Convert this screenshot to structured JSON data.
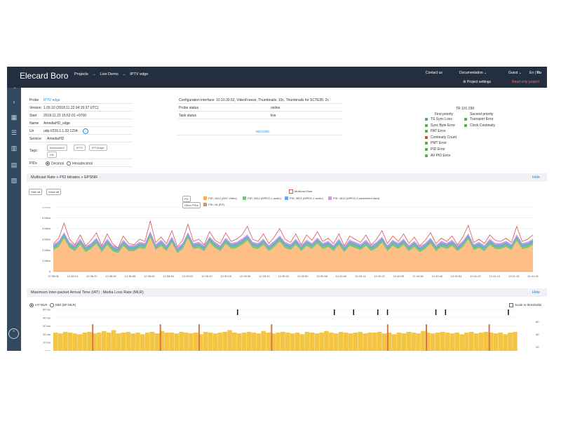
{
  "app": {
    "brand": "Elecard Boro"
  },
  "breadcrumb": {
    "items": [
      "Projects",
      "Live Demo",
      "IPTV edge"
    ],
    "sep": "→"
  },
  "topnav": {
    "contact": "Contact us",
    "documentation": "Documentation",
    "guest": "Guest",
    "lang_en": "En",
    "lang_sep": "|",
    "lang_ru": "Ru",
    "project_settings": "Project settings",
    "read_only": "Read only project"
  },
  "probe": {
    "probe_label": "Probe",
    "probe_value": "IPTV edge",
    "version_label": "Version",
    "version_value": "1.05.10 (2018.11.22 04:15:37 UTC)",
    "start_label": "Start",
    "start_value": "2018.11.22 15:52:01 +0700",
    "name_label": "Name",
    "name_value": "AmediaHD_edge",
    "uri_label": "Uri",
    "uri_value": "udp://239.1.1.32:1234",
    "service_label": "Service:",
    "service_value": "AmediaHD",
    "tags_label": "Tags:",
    "tags": [
      "transcoder2",
      "IPTV",
      "IPTVedge",
      "HD"
    ],
    "pids_label": "PIDs",
    "pids_options": [
      "Decimal",
      "Hexadecimal"
    ],
    "pids_selected": "Decimal"
  },
  "config": {
    "line": "Configuration interface: 10.10.30.52, VideoFreeze, Thumbnails: 10c, Thumbnails for SCTE35: 2c",
    "probe_status_label": "Probe status",
    "probe_status_value": "online",
    "task_status_label": "Task status",
    "task_status_value": "live",
    "record": "RECORD"
  },
  "tr101290": {
    "title": "TR 101 290",
    "first_priority": "First priority",
    "second_priority": "Second priority",
    "first": [
      {
        "label": "TS Sync Loss",
        "status": "ok"
      },
      {
        "label": "Sync Byte Error",
        "status": "ok"
      },
      {
        "label": "PAT Error",
        "status": "ok"
      },
      {
        "label": "Continuity Count",
        "status": "error"
      },
      {
        "label": "PMT Error",
        "status": "ok"
      },
      {
        "label": "PID Error",
        "status": "ok"
      },
      {
        "label": "AV PID Error",
        "status": "ok"
      }
    ],
    "second": [
      {
        "label": "Transport Error",
        "status": "ok"
      },
      {
        "label": "Clock Continuity",
        "status": "ok"
      }
    ]
  },
  "section1": {
    "title": "Multicast Rate + PID bitrates + EPSNR",
    "hide": "Hide",
    "hide_all": "Hide all",
    "show_all": "Show all",
    "legend_multicast": "Multicast Rate",
    "legend_pids": [
      {
        "label": "PID: 1612 (AVC Video)",
        "color": "#f5a962"
      },
      {
        "label": "PID: 2812 (MPEG-1 audio)",
        "color": "#7cc576"
      },
      {
        "label": "PID: 3812 (MPEG-1 audio)",
        "color": "#6fa8dc"
      },
      {
        "label": "PID: 4812 (MPEG-2 packetized data)",
        "color": "#c9a0dc"
      }
    ],
    "legend_pid18": {
      "label": "PID: 18 (EIT)",
      "color": "#d98f6e"
    },
    "btn_pd": "PD",
    "btn_other": "Other PIDs",
    "colors": {
      "multicast": "#d9534f",
      "video": "#fdbf85",
      "green": "#7cc576",
      "blue": "#6fa8dc",
      "purple": "#c9a0dc"
    }
  },
  "chart_data": [
    {
      "type": "area",
      "title": "Multicast Rate + PID bitrates + EPSNR",
      "ylim": [
        0,
        6
      ],
      "y_ticks": [
        "0",
        "1 Mb/s",
        "2 Mb/s",
        "3 Mb/s",
        "4 Mb/s",
        "5 Mb/s",
        "6 Mb/s"
      ],
      "x_ticks": [
        "12:38:06",
        "12:38:14",
        "12:38:22",
        "12:38:30",
        "12:38:38",
        "12:38:46",
        "12:38:54",
        "12:39:02",
        "12:39:10",
        "12:39:18",
        "12:39:26",
        "12:39:34",
        "12:39:42",
        "12:39:50",
        "12:39:58",
        "12:40:06",
        "12:40:14",
        "12:40:22",
        "12:40:30",
        "12:40:38",
        "12:40:46",
        "12:40:54",
        "12:41:02",
        "12:41:10",
        "12:41:18",
        "12:41:26"
      ],
      "series": [
        {
          "name": "Multicast Rate",
          "values": [
            2.6,
            3.1,
            4.5,
            3.0,
            2.5,
            3.4,
            2.4,
            2.9,
            3.6,
            2.4,
            3.5,
            2.6,
            2.2,
            3.3,
            2.6,
            2.5,
            3.0,
            2.8,
            4.7,
            2.7,
            3.2,
            2.6,
            3.8,
            2.3,
            2.9,
            4.4,
            2.8,
            3.0,
            2.5,
            3.7,
            2.9,
            2.6,
            3.6,
            2.8,
            3.0,
            3.4,
            4.2,
            3.0,
            2.8,
            3.5,
            2.6,
            3.2,
            4.0,
            3.0,
            2.7,
            3.5,
            2.5,
            3.4,
            2.9,
            3.7,
            2.8,
            3.1,
            2.6,
            3.5,
            2.4,
            3.3,
            3.0,
            2.7,
            3.4,
            2.5,
            3.0,
            3.8,
            2.6,
            3.3,
            2.8,
            3.5,
            2.6,
            3.2,
            2.4,
            2.9,
            3.6,
            2.6,
            3.1,
            2.8,
            3.3,
            2.5,
            3.2,
            4.3,
            2.7,
            3.0,
            2.6,
            3.4,
            2.9,
            2.8,
            3.1,
            2.7,
            4.2,
            2.8,
            3.0,
            3.4
          ]
        },
        {
          "name": "PID: 1612 (AVC Video)",
          "values": [
            2.0,
            2.3,
            3.1,
            2.2,
            1.9,
            2.5,
            1.8,
            2.1,
            2.6,
            1.8,
            2.5,
            1.9,
            1.7,
            2.4,
            1.9,
            1.9,
            2.2,
            2.1,
            3.2,
            2.0,
            2.4,
            1.9,
            2.7,
            1.7,
            2.1,
            3.1,
            2.1,
            2.2,
            1.9,
            2.7,
            2.2,
            1.9,
            2.6,
            2.1,
            2.2,
            2.5,
            2.9,
            2.2,
            2.1,
            2.5,
            1.9,
            2.3,
            2.8,
            2.2,
            2.0,
            2.5,
            1.9,
            2.4,
            2.1,
            2.6,
            2.1,
            2.3,
            1.9,
            2.5,
            1.8,
            2.4,
            2.2,
            2.0,
            2.4,
            1.9,
            2.2,
            2.7,
            1.9,
            2.4,
            2.1,
            2.5,
            1.9,
            2.3,
            1.8,
            2.1,
            2.6,
            1.9,
            2.3,
            2.1,
            2.4,
            1.9,
            2.3,
            3.0,
            2.0,
            2.2,
            1.9,
            2.5,
            2.1,
            2.1,
            2.3,
            2.0,
            2.9,
            2.1,
            2.2,
            2.5
          ]
        }
      ]
    },
    {
      "type": "bar",
      "title": "Maximum Inter-packet Arrival Time (IAT) ; Media Loss Rate (MLR)",
      "ylim": [
        0,
        50
      ],
      "y_ticks": [
        "0 ms",
        "10 ms",
        "20 ms",
        "30 ms",
        "40 ms",
        "50 ms"
      ],
      "y2_ticks": [
        "60",
        "40",
        "20"
      ],
      "series": [
        {
          "name": "IAT MLR",
          "values": [
            22,
            21,
            23,
            22,
            21,
            20,
            22,
            23,
            21,
            22,
            24,
            22,
            25,
            21,
            22,
            23,
            21,
            22,
            20,
            22,
            23,
            21,
            24,
            22,
            22,
            21,
            23,
            22,
            21,
            22,
            20,
            23,
            22,
            21,
            22,
            23,
            25,
            22,
            21,
            22,
            23,
            22,
            21,
            24,
            22,
            21,
            22,
            23,
            22,
            21,
            22,
            20,
            23,
            22,
            21,
            22,
            24,
            22,
            21,
            23,
            22,
            21,
            22,
            23,
            21,
            22,
            22,
            23,
            21,
            22,
            20,
            22,
            21,
            23,
            22,
            21,
            24,
            22,
            21,
            22,
            23,
            22,
            21,
            22,
            20,
            22,
            23,
            21,
            22,
            23,
            22,
            21,
            22,
            20,
            22,
            23
          ]
        }
      ]
    }
  ],
  "section2": {
    "title": "Maximum Inter-packet Arrival Time (IAT) ; Media Loss Rate (MLR)",
    "hide": "Hide",
    "opt_iat": "IAT MLR",
    "opt_mdi": "MDI (DF:MLR)",
    "scale_thresholds": "Scale to thresholds"
  }
}
